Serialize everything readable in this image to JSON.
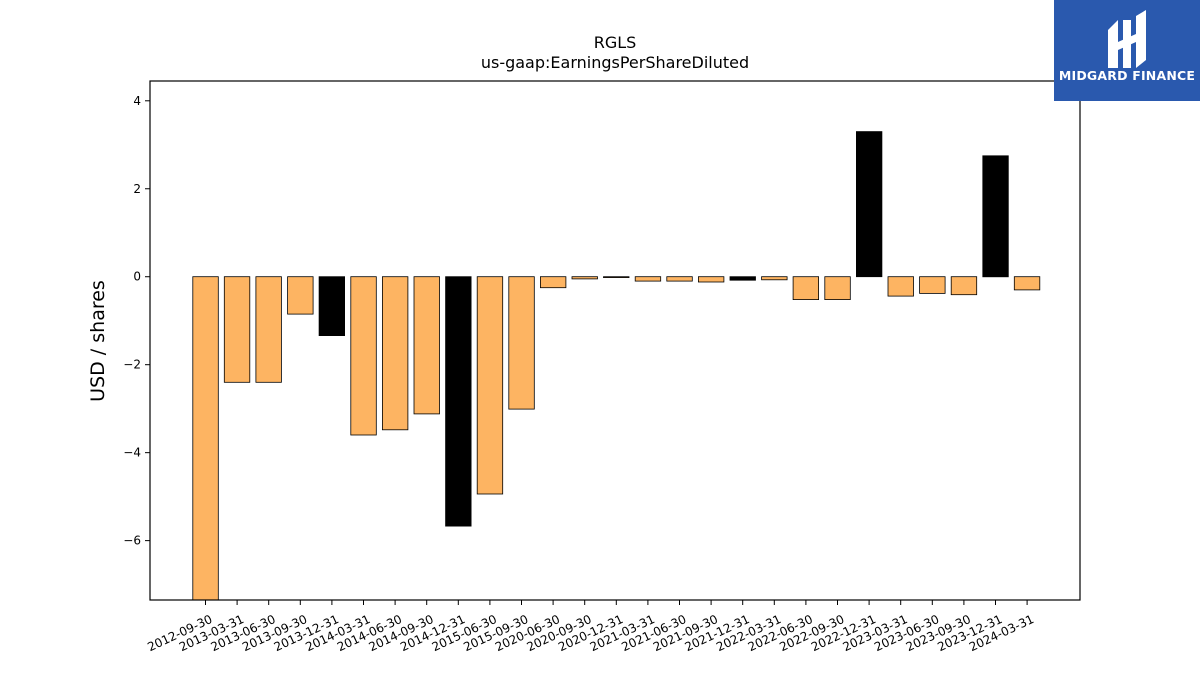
{
  "brand": {
    "name": "MIDGARD FINANCE",
    "color": "#2a59ae"
  },
  "chart_data": {
    "type": "bar",
    "title": "RGLS",
    "subtitle": "us-gaap:EarningsPerShareDiluted",
    "xlabel": "",
    "ylabel": "USD / shares",
    "ylim": [
      -7.35,
      4.45
    ],
    "yticks": [
      -6,
      -4,
      -2,
      0,
      2,
      4
    ],
    "grid": false,
    "categories": [
      "2012-09-30",
      "2013-03-31",
      "2013-06-30",
      "2013-09-30",
      "2013-12-31",
      "2014-03-31",
      "2014-06-30",
      "2014-09-30",
      "2014-12-31",
      "2015-06-30",
      "2015-09-30",
      "2020-06-30",
      "2020-09-30",
      "2020-12-31",
      "2021-03-31",
      "2021-06-30",
      "2021-09-30",
      "2021-12-31",
      "2022-03-31",
      "2022-06-30",
      "2022-09-30",
      "2022-12-31",
      "2023-03-31",
      "2023-06-30",
      "2023-09-30",
      "2023-12-31",
      "2024-03-31"
    ],
    "values": [
      -7.5,
      -2.4,
      -2.4,
      -0.85,
      -1.34,
      -3.6,
      -3.48,
      -3.12,
      -5.67,
      -4.94,
      -3.01,
      -0.25,
      -0.05,
      -0.02,
      -0.1,
      -0.1,
      -0.12,
      -0.08,
      -0.07,
      -0.52,
      -0.52,
      3.3,
      -0.44,
      -0.38,
      -0.41,
      2.75,
      -0.3
    ],
    "colors": {
      "quarterly": "#fdb462",
      "annual": "#000000",
      "edge": "#000000"
    },
    "annual_indices": [
      4,
      8,
      17,
      21,
      25
    ]
  }
}
